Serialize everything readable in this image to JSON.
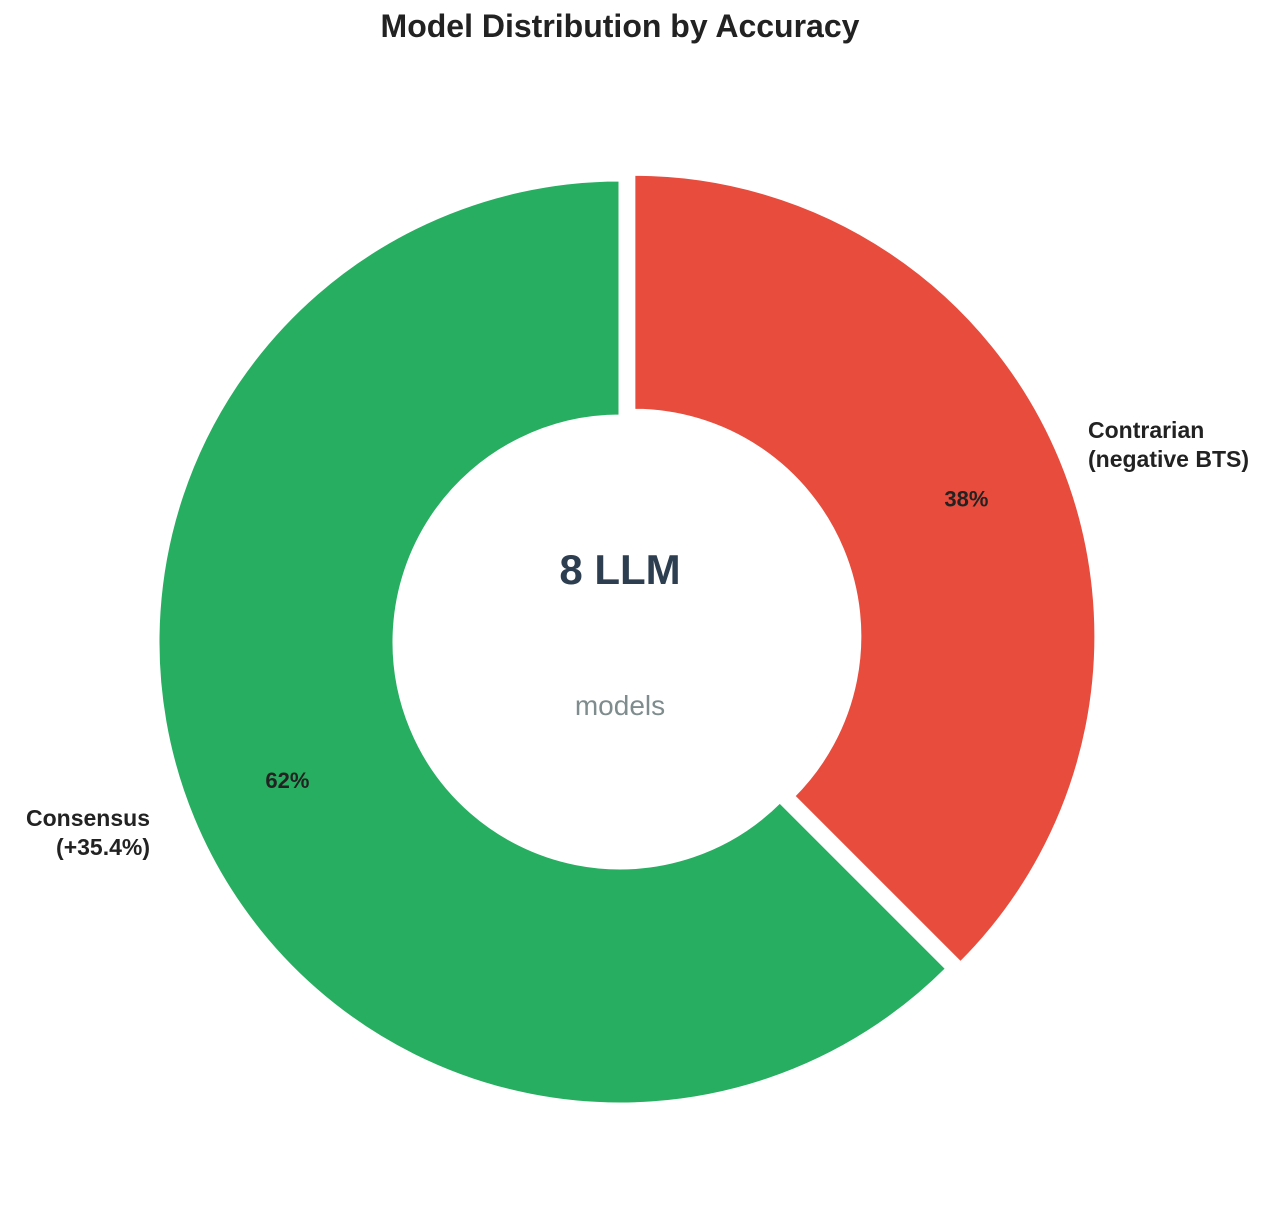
{
  "chart_data": {
    "type": "pie",
    "variant": "donut",
    "title": "Model Distribution by Accuracy",
    "center_text": "8 LLM",
    "center_subtext": "models",
    "start_angle_deg": 90,
    "direction": "clockwise",
    "slices": [
      {
        "label_lines": [
          "Contrarian",
          "(negative BTS)"
        ],
        "value": 3,
        "percent_label": "38%",
        "color": "#e74c3c",
        "exploded": true
      },
      {
        "label_lines": [
          "Consensus",
          "(+35.4%)"
        ],
        "value": 5,
        "percent_label": "62%",
        "color": "#27ae60",
        "exploded": false
      }
    ],
    "colors": {
      "center_main": "#2c3e50",
      "center_sub": "#7f8c8d",
      "separator": "#ffffff"
    }
  }
}
